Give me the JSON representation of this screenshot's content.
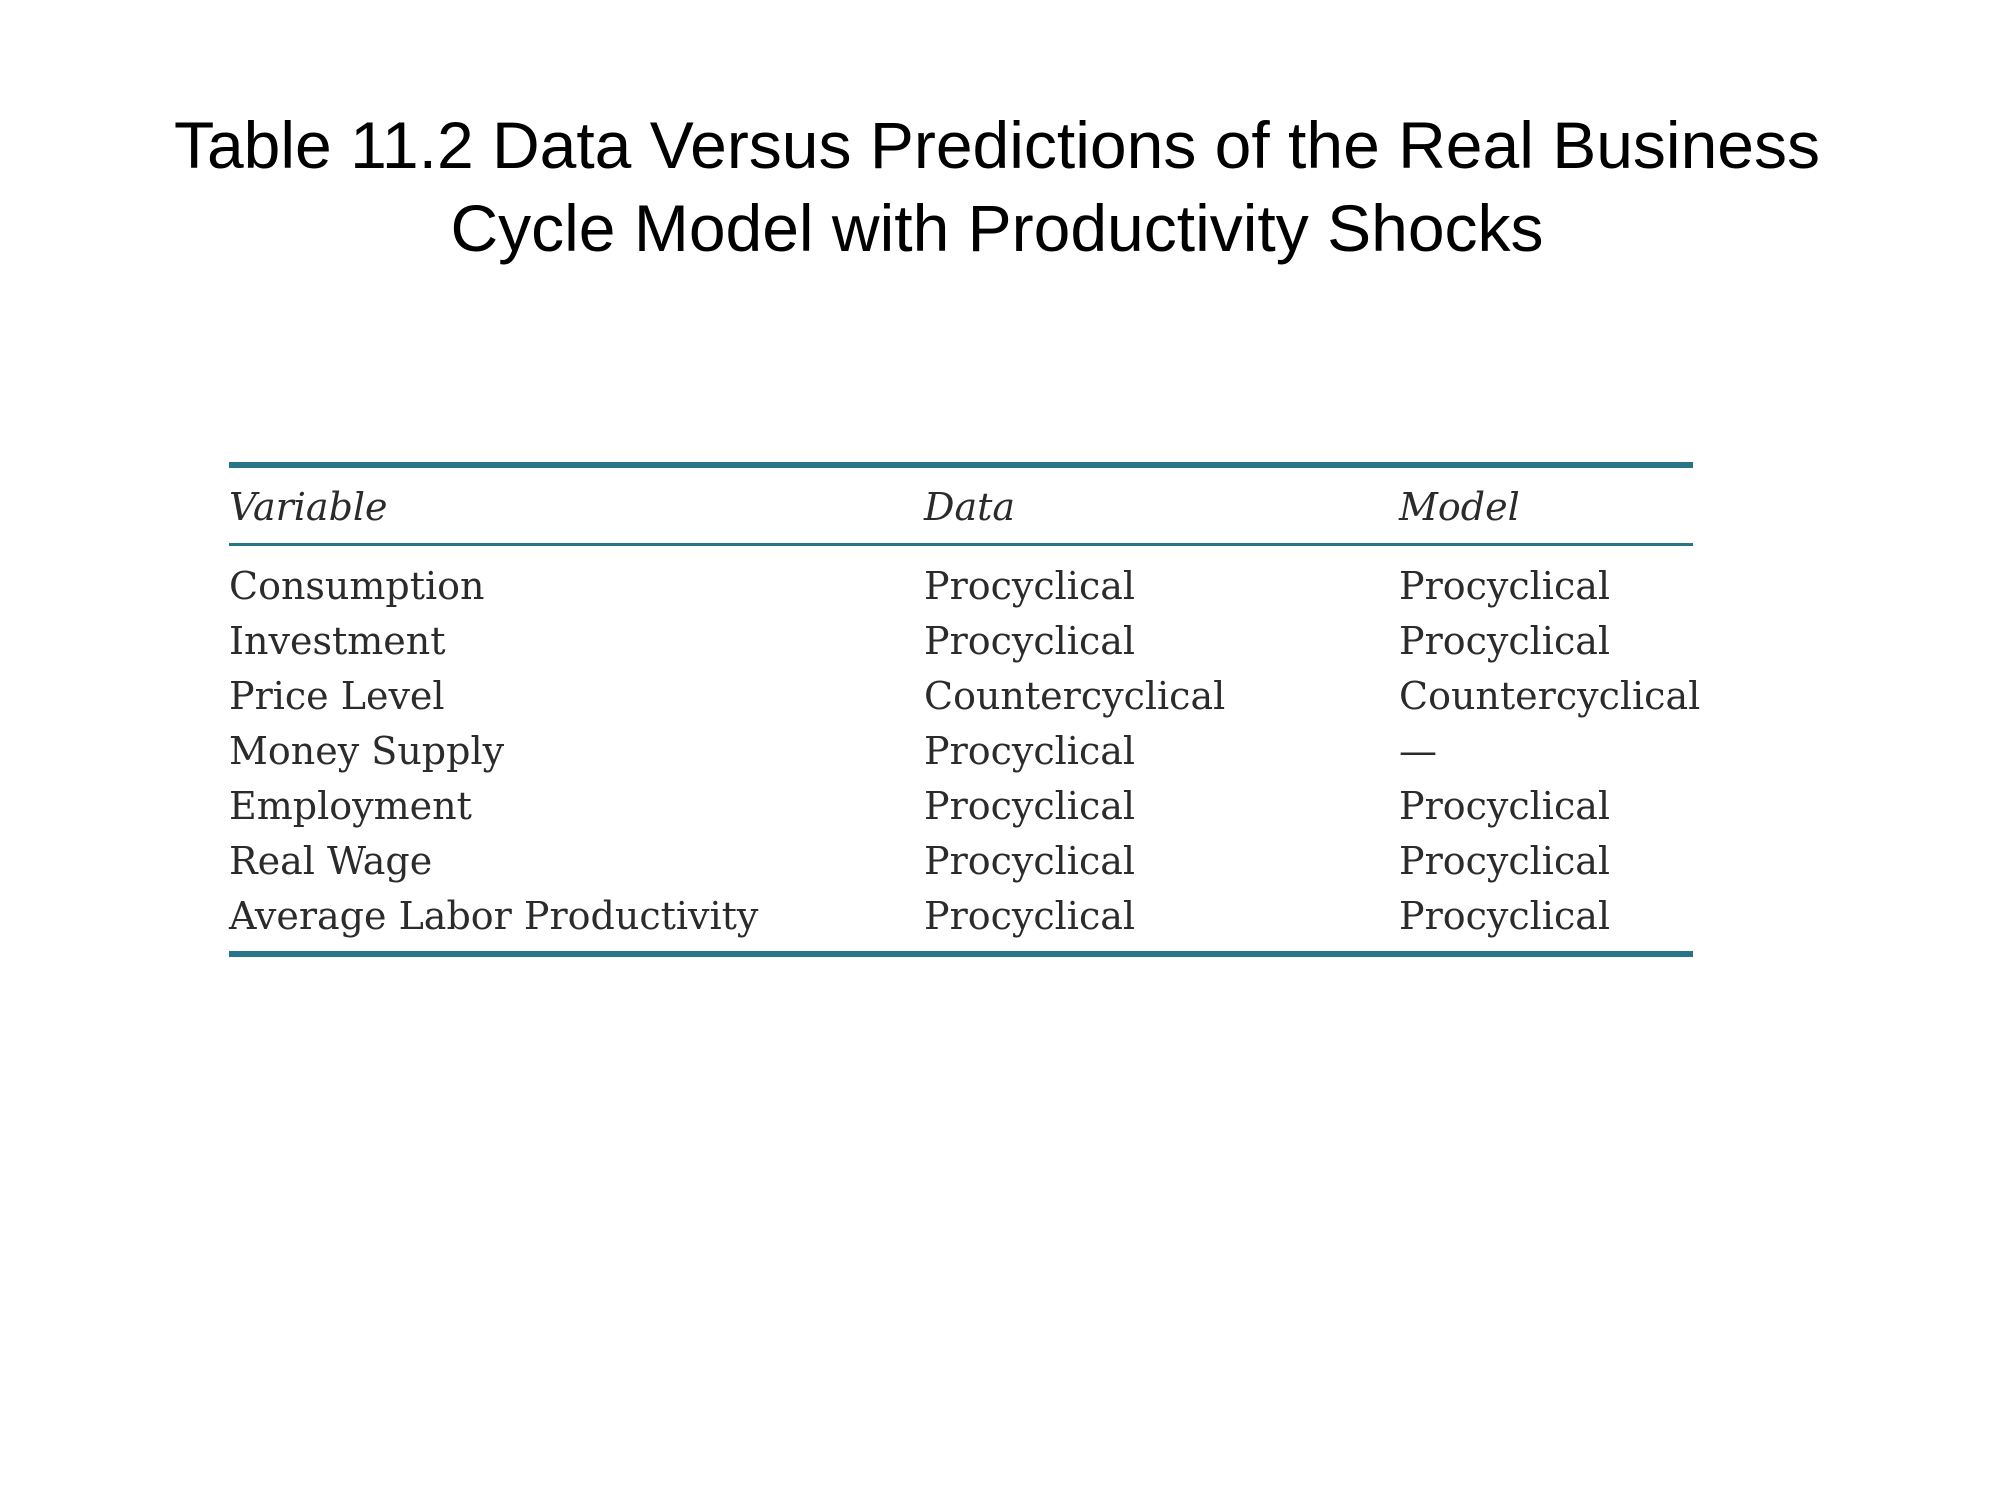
{
  "title": {
    "line1": "Table 11.2  Data Versus Predictions of the Real Business",
    "line2": "Cycle Model with Productivity Shocks"
  },
  "table": {
    "headers": [
      "Variable",
      "Data",
      "Model"
    ],
    "rows": [
      [
        "Consumption",
        "Procyclical",
        "Procyclical"
      ],
      [
        "Investment",
        "Procyclical",
        "Procyclical"
      ],
      [
        "Price Level",
        "Countercyclical",
        "Countercyclical"
      ],
      [
        "Money Supply",
        "Procyclical",
        "—"
      ],
      [
        "Employment",
        "Procyclical",
        "Procyclical"
      ],
      [
        "Real Wage",
        "Procyclical",
        "Procyclical"
      ],
      [
        "Average Labor Productivity",
        "Procyclical",
        "Procyclical"
      ]
    ]
  },
  "colors": {
    "rule": "#2a7489",
    "text": "#2b2b2b"
  }
}
